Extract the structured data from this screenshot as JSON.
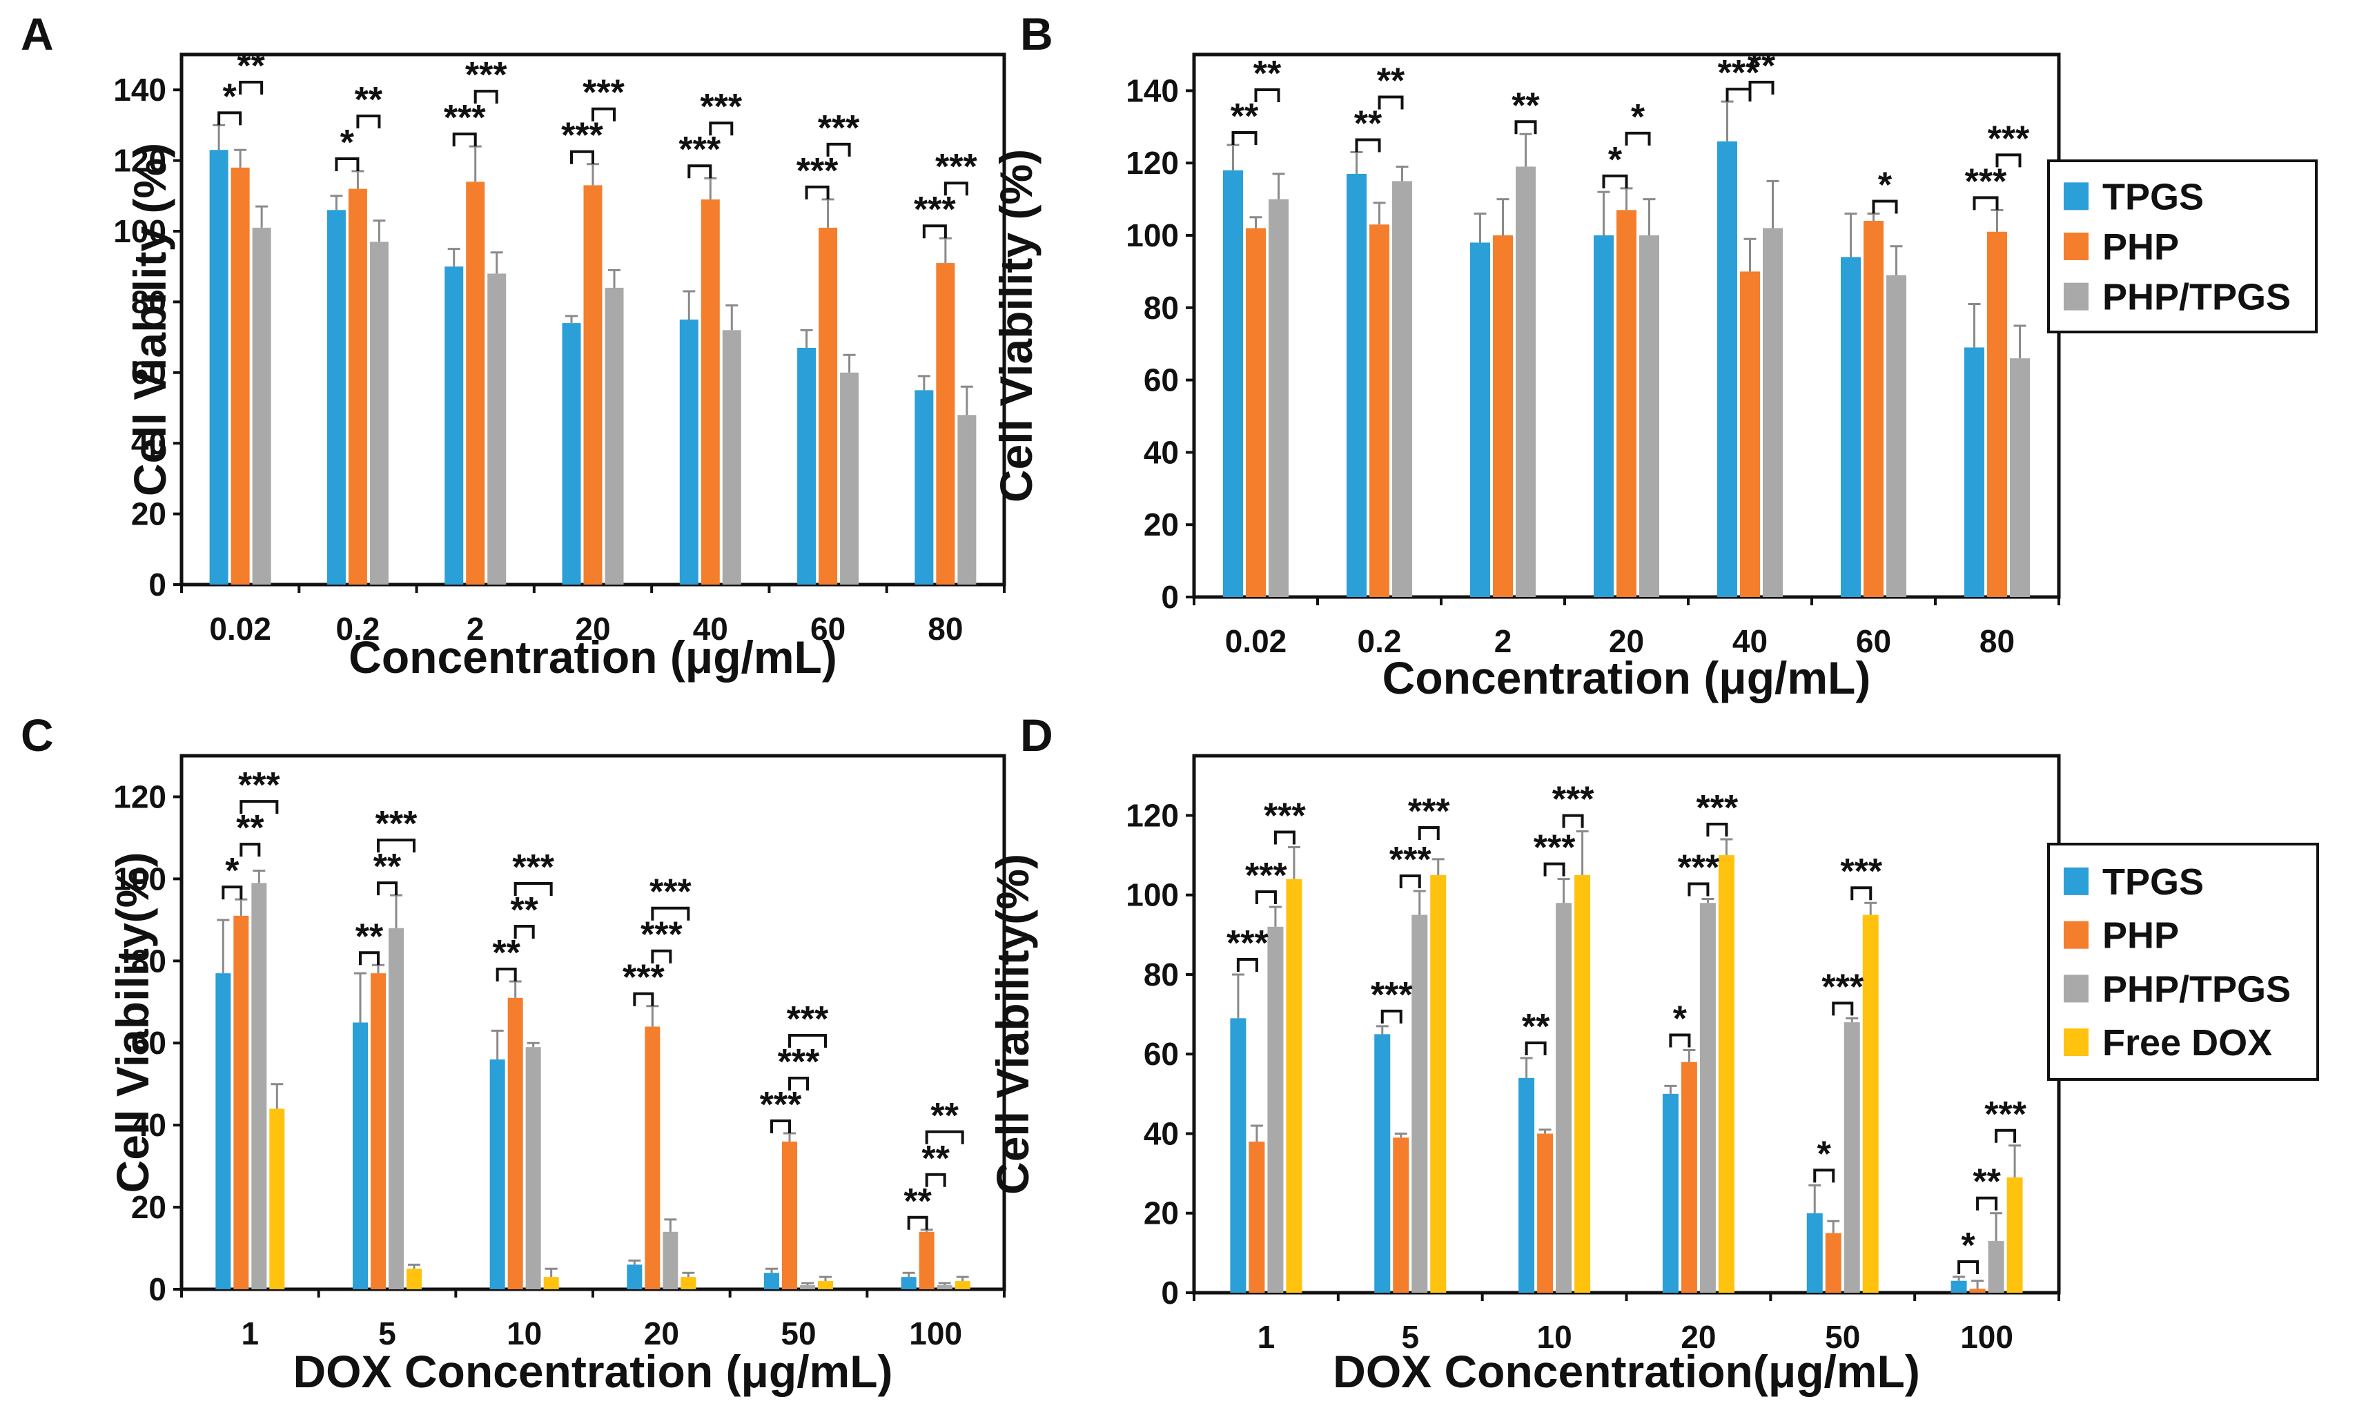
{
  "colors": {
    "TPGS": "#2a9fd8",
    "PHP": "#f57e2d",
    "PHP/TPGS": "#a9a9a9",
    "Free DOX": "#ffc20e"
  },
  "legends": [
    {
      "entries": [
        "TPGS",
        "PHP",
        "PHP/TPGS"
      ]
    },
    {
      "entries": [
        "TPGS",
        "PHP",
        "PHP/TPGS",
        "Free DOX"
      ]
    }
  ],
  "chart_data": [
    {
      "panel": "A",
      "type": "bar",
      "xlabel": "Concentration (μg/mL)",
      "ylabel": "Cell Viability (%)",
      "ylim": [
        0,
        150
      ],
      "yticks": [
        0,
        20,
        40,
        60,
        80,
        100,
        120,
        140
      ],
      "categories": [
        "0.02",
        "0.2",
        "2",
        "20",
        "40",
        "60",
        "80"
      ],
      "series": [
        {
          "name": "TPGS",
          "values": [
            123,
            106,
            90,
            74,
            75,
            67,
            55
          ],
          "errors": [
            7,
            4,
            5,
            2,
            8,
            5,
            4
          ]
        },
        {
          "name": "PHP",
          "values": [
            118,
            112,
            114,
            113,
            109,
            101,
            91
          ],
          "errors": [
            5,
            5,
            10,
            6,
            6,
            8,
            7
          ]
        },
        {
          "name": "PHP/TPGS",
          "values": [
            101,
            97,
            88,
            84,
            72,
            60,
            48
          ],
          "errors": [
            6,
            6,
            6,
            5,
            7,
            5,
            8
          ]
        }
      ],
      "significance": [
        {
          "category": 0,
          "from": 0,
          "to": 1,
          "label": "*"
        },
        {
          "category": 0,
          "from": 1,
          "to": 2,
          "label": "**"
        },
        {
          "category": 1,
          "from": 0,
          "to": 1,
          "label": "*"
        },
        {
          "category": 1,
          "from": 1,
          "to": 2,
          "label": "**"
        },
        {
          "category": 2,
          "from": 0,
          "to": 1,
          "label": "***"
        },
        {
          "category": 2,
          "from": 1,
          "to": 2,
          "label": "***"
        },
        {
          "category": 3,
          "from": 0,
          "to": 1,
          "label": "***"
        },
        {
          "category": 3,
          "from": 1,
          "to": 2,
          "label": "***"
        },
        {
          "category": 4,
          "from": 0,
          "to": 1,
          "label": "***"
        },
        {
          "category": 4,
          "from": 1,
          "to": 2,
          "label": "***"
        },
        {
          "category": 5,
          "from": 0,
          "to": 1,
          "label": "***"
        },
        {
          "category": 5,
          "from": 1,
          "to": 2,
          "label": "***"
        },
        {
          "category": 6,
          "from": 0,
          "to": 1,
          "label": "***"
        },
        {
          "category": 6,
          "from": 1,
          "to": 2,
          "label": "***"
        }
      ]
    },
    {
      "panel": "B",
      "type": "bar",
      "xlabel": "Concentration (μg/mL)",
      "ylabel": "Cell Viability (%)",
      "ylim": [
        0,
        150
      ],
      "yticks": [
        0,
        20,
        40,
        60,
        80,
        100,
        120,
        140
      ],
      "categories": [
        "0.02",
        "0.2",
        "2",
        "20",
        "40",
        "60",
        "80"
      ],
      "series": [
        {
          "name": "TPGS",
          "values": [
            118,
            117,
            98,
            100,
            126,
            94,
            69
          ],
          "errors": [
            7,
            6,
            8,
            12,
            11,
            12,
            12
          ]
        },
        {
          "name": "PHP",
          "values": [
            102,
            103,
            100,
            107,
            90,
            104,
            101
          ],
          "errors": [
            3,
            6,
            10,
            6,
            9,
            2,
            6
          ]
        },
        {
          "name": "PHP/TPGS",
          "values": [
            110,
            115,
            119,
            100,
            102,
            89,
            66
          ],
          "errors": [
            7,
            4,
            9,
            10,
            13,
            8,
            9
          ]
        }
      ],
      "significance": [
        {
          "category": 0,
          "from": 0,
          "to": 1,
          "label": "**"
        },
        {
          "category": 0,
          "from": 1,
          "to": 2,
          "label": "**"
        },
        {
          "category": 1,
          "from": 0,
          "to": 1,
          "label": "**"
        },
        {
          "category": 1,
          "from": 1,
          "to": 2,
          "label": "**"
        },
        {
          "category": 2,
          "from": 2,
          "to": 2,
          "label": "**"
        },
        {
          "category": 3,
          "from": 0,
          "to": 1,
          "label": "*"
        },
        {
          "category": 3,
          "from": 1,
          "to": 2,
          "label": "*"
        },
        {
          "category": 4,
          "from": 0,
          "to": 1,
          "label": "***"
        },
        {
          "category": 4,
          "from": 1,
          "to": 2,
          "label": "**"
        },
        {
          "category": 5,
          "from": 1,
          "to": 2,
          "label": "*"
        },
        {
          "category": 6,
          "from": 0,
          "to": 1,
          "label": "***"
        },
        {
          "category": 6,
          "from": 1,
          "to": 2,
          "label": "***"
        }
      ]
    },
    {
      "panel": "C",
      "type": "bar",
      "xlabel": "DOX Concentration  (μg/mL)",
      "ylabel": "Cell Viability(%)",
      "ylim": [
        0,
        130
      ],
      "yticks": [
        0,
        20,
        40,
        60,
        80,
        100,
        120
      ],
      "categories": [
        "1",
        "5",
        "10",
        "20",
        "50",
        "100"
      ],
      "series": [
        {
          "name": "TPGS",
          "values": [
            77,
            65,
            56,
            6,
            4,
            3
          ],
          "errors": [
            13,
            12,
            7,
            1,
            1,
            1
          ]
        },
        {
          "name": "PHP",
          "values": [
            91,
            77,
            71,
            64,
            36,
            14
          ],
          "errors": [
            4,
            2,
            4,
            5,
            2,
            0.5
          ]
        },
        {
          "name": "PHP/TPGS",
          "values": [
            99,
            88,
            59,
            14,
            1,
            1
          ],
          "errors": [
            3,
            8,
            1,
            3,
            0.5,
            0.5
          ]
        },
        {
          "name": "Free DOX",
          "values": [
            44,
            5,
            3,
            3,
            2,
            2
          ],
          "errors": [
            6,
            1,
            2,
            1,
            1,
            1
          ]
        }
      ],
      "significance": [
        {
          "category": 0,
          "from": 0,
          "to": 1,
          "label": "*"
        },
        {
          "category": 0,
          "from": 1,
          "to": 2,
          "label": "**"
        },
        {
          "category": 0,
          "from": 1,
          "to": 3,
          "label": "***"
        },
        {
          "category": 1,
          "from": 0,
          "to": 1,
          "label": "**"
        },
        {
          "category": 1,
          "from": 1,
          "to": 2,
          "label": "**"
        },
        {
          "category": 1,
          "from": 1,
          "to": 3,
          "label": "***"
        },
        {
          "category": 2,
          "from": 0,
          "to": 1,
          "label": "**"
        },
        {
          "category": 2,
          "from": 1,
          "to": 2,
          "label": "**"
        },
        {
          "category": 2,
          "from": 1,
          "to": 3,
          "label": "***"
        },
        {
          "category": 3,
          "from": 0,
          "to": 1,
          "label": "***"
        },
        {
          "category": 3,
          "from": 1,
          "to": 2,
          "label": "***"
        },
        {
          "category": 3,
          "from": 1,
          "to": 3,
          "label": "***"
        },
        {
          "category": 4,
          "from": 0,
          "to": 1,
          "label": "***"
        },
        {
          "category": 4,
          "from": 1,
          "to": 2,
          "label": "***"
        },
        {
          "category": 4,
          "from": 1,
          "to": 3,
          "label": "***"
        },
        {
          "category": 5,
          "from": 0,
          "to": 1,
          "label": "**"
        },
        {
          "category": 5,
          "from": 1,
          "to": 2,
          "label": "**"
        },
        {
          "category": 5,
          "from": 1,
          "to": 3,
          "label": "**"
        }
      ]
    },
    {
      "panel": "D",
      "type": "bar",
      "xlabel": "DOX Concentration(μg/mL)",
      "ylabel": "Cell Viability(%)",
      "ylim": [
        0,
        135
      ],
      "yticks": [
        0,
        20,
        40,
        60,
        80,
        100,
        120
      ],
      "categories": [
        "1",
        "5",
        "10",
        "20",
        "50",
        "100"
      ],
      "series": [
        {
          "name": "TPGS",
          "values": [
            69,
            65,
            54,
            50,
            20,
            3
          ],
          "errors": [
            11,
            2,
            5,
            2,
            7,
            1
          ]
        },
        {
          "name": "PHP",
          "values": [
            38,
            39,
            40,
            58,
            15,
            1
          ],
          "errors": [
            4,
            1,
            1,
            3,
            3,
            2
          ]
        },
        {
          "name": "PHP/TPGS",
          "values": [
            92,
            95,
            98,
            98,
            68,
            13
          ],
          "errors": [
            5,
            6,
            6,
            1,
            1,
            7
          ]
        },
        {
          "name": "Free DOX",
          "values": [
            104,
            105,
            105,
            110,
            95,
            29
          ],
          "errors": [
            8,
            4,
            11,
            4,
            3,
            8
          ]
        }
      ],
      "significance": [
        {
          "category": 0,
          "from": 0,
          "to": 1,
          "label": "***"
        },
        {
          "category": 0,
          "from": 1,
          "to": 2,
          "label": "***"
        },
        {
          "category": 0,
          "from": 2,
          "to": 3,
          "label": "***"
        },
        {
          "category": 1,
          "from": 0,
          "to": 1,
          "label": "***"
        },
        {
          "category": 1,
          "from": 1,
          "to": 2,
          "label": "***"
        },
        {
          "category": 1,
          "from": 2,
          "to": 3,
          "label": "***"
        },
        {
          "category": 2,
          "from": 0,
          "to": 1,
          "label": "**"
        },
        {
          "category": 2,
          "from": 1,
          "to": 2,
          "label": "***"
        },
        {
          "category": 2,
          "from": 2,
          "to": 3,
          "label": "***"
        },
        {
          "category": 3,
          "from": 0,
          "to": 1,
          "label": "*"
        },
        {
          "category": 3,
          "from": 1,
          "to": 2,
          "label": "***"
        },
        {
          "category": 3,
          "from": 2,
          "to": 3,
          "label": "***"
        },
        {
          "category": 4,
          "from": 0,
          "to": 1,
          "label": "*"
        },
        {
          "category": 4,
          "from": 1,
          "to": 2,
          "label": "***"
        },
        {
          "category": 4,
          "from": 2,
          "to": 3,
          "label": "***"
        },
        {
          "category": 5,
          "from": 0,
          "to": 1,
          "label": "*"
        },
        {
          "category": 5,
          "from": 1,
          "to": 2,
          "label": "**"
        },
        {
          "category": 5,
          "from": 2,
          "to": 3,
          "label": "***"
        }
      ]
    }
  ]
}
